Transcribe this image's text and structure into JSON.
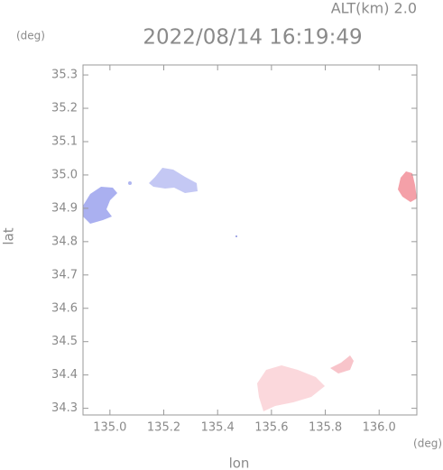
{
  "chart_data": {
    "type": "map",
    "title": "2022/08/14 16:19:49",
    "subtitle": "ALT(km) 2.0",
    "x_label": "lon",
    "y_label": "lat",
    "x_unit": "(deg)",
    "y_unit": "(deg)",
    "xlim": [
      134.9,
      136.14
    ],
    "ylim": [
      34.28,
      35.33
    ],
    "xticks": [
      {
        "value": 135,
        "label": "135.0"
      },
      135.2,
      135.4,
      135.6,
      135.8,
      {
        "value": 136,
        "label": "136.0"
      }
    ],
    "yticks": [
      34.3,
      34.4,
      34.5,
      34.6,
      34.7,
      34.8,
      34.9,
      {
        "value": 35,
        "label": "35.0"
      },
      35.1,
      35.2,
      35.3
    ]
  }
}
